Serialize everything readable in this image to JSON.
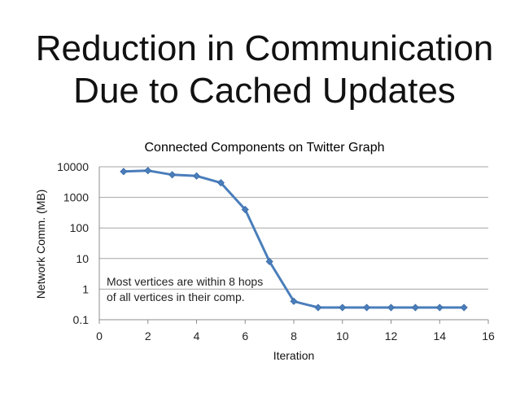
{
  "slide": {
    "title_line1": "Reduction in Communication",
    "title_line2": "Due to Cached Updates"
  },
  "chart_data": {
    "type": "line",
    "title": "Connected Components on Twitter Graph",
    "xlabel": "Iteration",
    "ylabel": "Network Comm. (MB)",
    "xlim": [
      0,
      16
    ],
    "ylim": [
      0.1,
      10000
    ],
    "yscale": "log",
    "x_ticks": [
      "0",
      "2",
      "4",
      "6",
      "8",
      "10",
      "12",
      "14",
      "16"
    ],
    "y_ticks": [
      "0.1",
      "1",
      "10",
      "100",
      "1000",
      "10000"
    ],
    "grid": "horizontal",
    "series": [
      {
        "color": "#4a7ebb",
        "x": [
          1,
          2,
          3,
          4,
          5,
          6,
          7,
          8,
          9,
          10,
          11,
          12,
          13,
          14,
          15
        ],
        "values": [
          7000,
          7500,
          5500,
          5000,
          3000,
          400,
          8,
          0.4,
          0.25,
          0.25,
          0.25,
          0.25,
          0.25,
          0.25,
          0.25
        ]
      }
    ],
    "annotation": {
      "line1": "Most vertices are within 8 hops",
      "line2": "of all vertices in their comp."
    }
  }
}
